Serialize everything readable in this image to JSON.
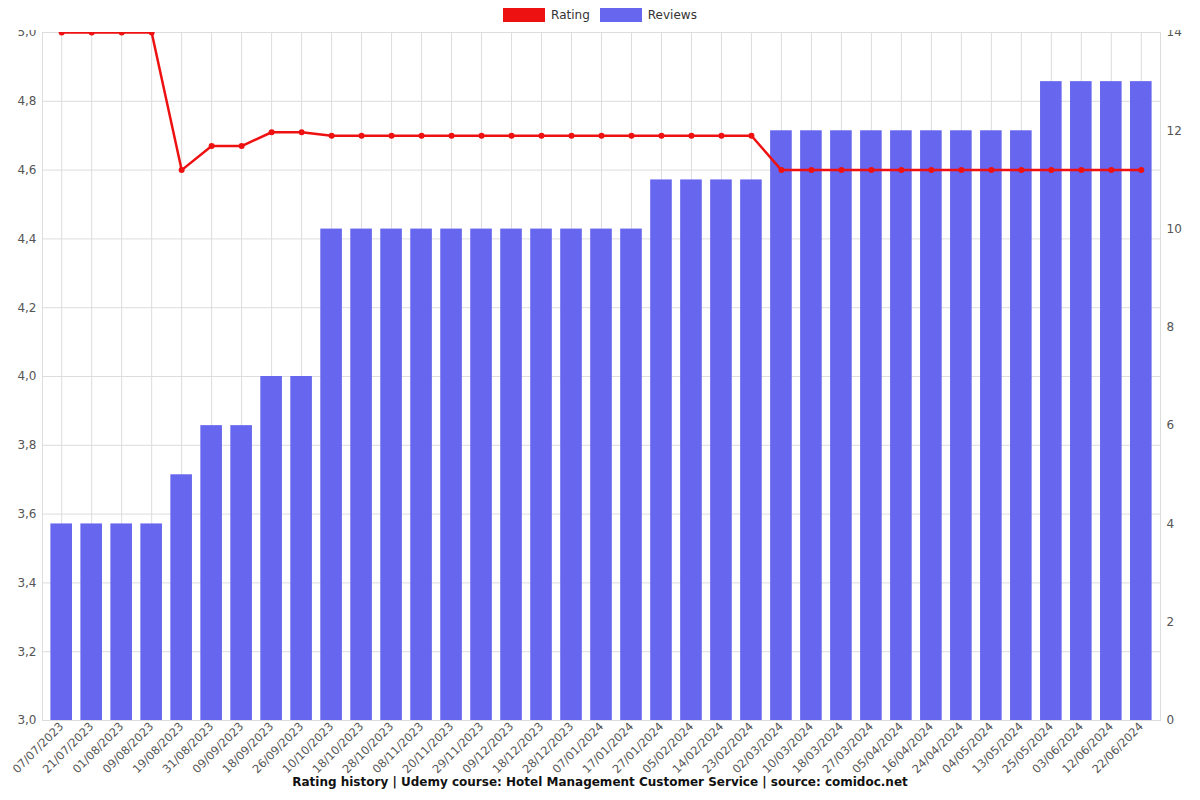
{
  "chart_data": {
    "type": "bar",
    "title": "Rating history | Udemy course: Hotel Management Customer Service | source: comidoc.net",
    "categories": [
      "07/07/2023",
      "21/07/2023",
      "01/08/2023",
      "09/08/2023",
      "19/08/2023",
      "31/08/2023",
      "09/09/2023",
      "18/09/2023",
      "26/09/2023",
      "10/10/2023",
      "18/10/2023",
      "28/10/2023",
      "08/11/2023",
      "20/11/2023",
      "29/11/2023",
      "09/12/2023",
      "18/12/2023",
      "28/12/2023",
      "07/01/2024",
      "17/01/2024",
      "27/01/2024",
      "05/02/2024",
      "14/02/2024",
      "23/02/2024",
      "02/03/2024",
      "10/03/2024",
      "18/03/2024",
      "27/03/2024",
      "05/04/2024",
      "16/04/2024",
      "24/04/2024",
      "04/05/2024",
      "13/05/2024",
      "25/05/2024",
      "03/06/2024",
      "12/06/2024",
      "22/06/2024"
    ],
    "series": [
      {
        "name": "Rating",
        "type": "line",
        "color": "#ee1111",
        "marker": "circle",
        "values": [
          5.0,
          5.0,
          5.0,
          5.0,
          4.6,
          4.67,
          4.67,
          4.71,
          4.71,
          4.7,
          4.7,
          4.7,
          4.7,
          4.7,
          4.7,
          4.7,
          4.7,
          4.7,
          4.7,
          4.7,
          4.7,
          4.7,
          4.7,
          4.7,
          4.6,
          4.6,
          4.6,
          4.6,
          4.6,
          4.6,
          4.6,
          4.6,
          4.6,
          4.6,
          4.6,
          4.6,
          4.6
        ]
      },
      {
        "name": "Reviews",
        "type": "bar",
        "color": "#6666ee",
        "axis": "y2",
        "values": [
          4,
          4,
          4,
          4,
          5,
          6,
          6,
          7,
          7,
          10,
          10,
          10,
          10,
          10,
          10,
          10,
          10,
          10,
          10,
          10,
          11,
          11,
          11,
          11,
          12,
          12,
          12,
          12,
          12,
          12,
          12,
          12,
          12,
          13,
          13,
          13,
          13
        ]
      }
    ],
    "ylim": [
      3.0,
      5.0
    ],
    "yticks": [
      {
        "value": 3.0,
        "label": "3,0"
      },
      {
        "value": 3.2,
        "label": "3,2"
      },
      {
        "value": 3.4,
        "label": "3,4"
      },
      {
        "value": 3.6,
        "label": "3,6"
      },
      {
        "value": 3.8,
        "label": "3,8"
      },
      {
        "value": 4.0,
        "label": "4,0"
      },
      {
        "value": 4.2,
        "label": "4,2"
      },
      {
        "value": 4.4,
        "label": "4,4"
      },
      {
        "value": 4.6,
        "label": "4,6"
      },
      {
        "value": 4.8,
        "label": "4,8"
      },
      {
        "value": 5.0,
        "label": "5,0"
      }
    ],
    "y2lim": [
      0,
      14
    ],
    "y2ticks": [
      0,
      2,
      4,
      6,
      8,
      10,
      12,
      14
    ],
    "grid": true,
    "legend": "top"
  }
}
